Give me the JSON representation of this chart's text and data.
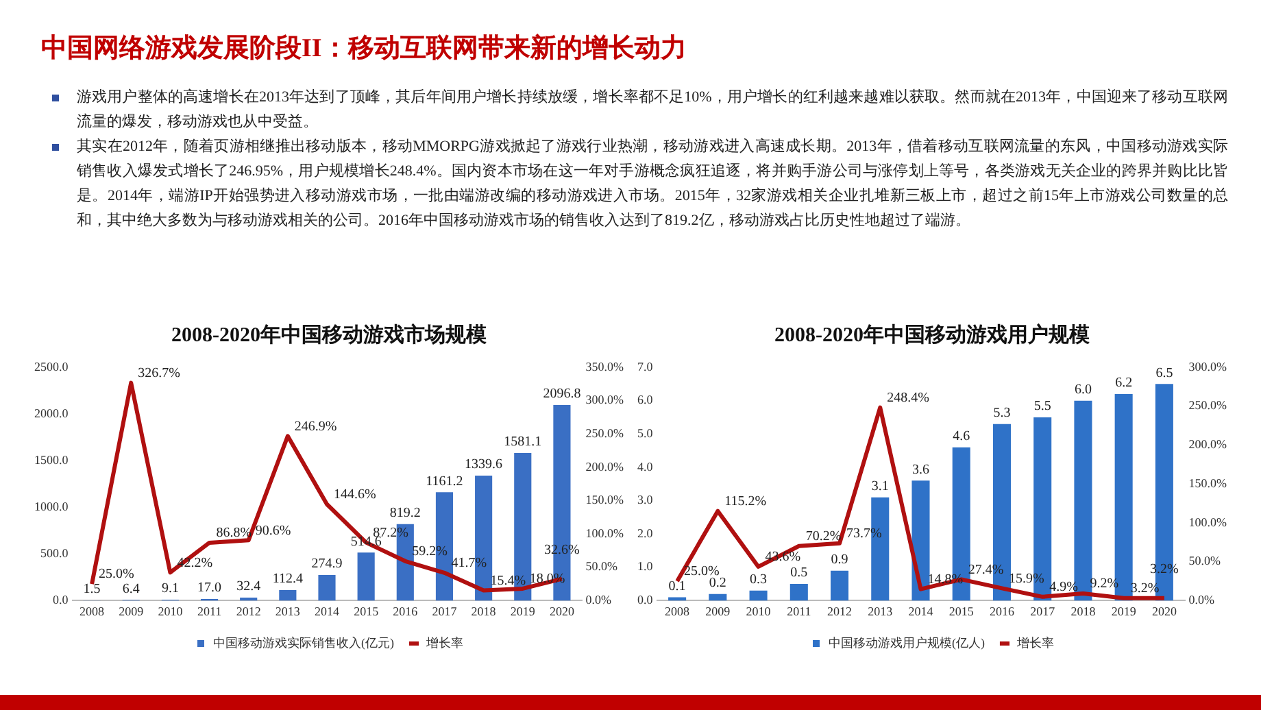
{
  "chart_data": [
    {
      "type": "other",
      "title": "中国网络游戏发展阶段II：移动互联网带来新的增长动力",
      "annotations": [
        "游戏用户整体的高速增长在2013年达到了顶峰，其后年间用户增长持续放缓，增长率都不足10%，用户增长的红利越来越难以获取。然而就在2013年，中国迎来了移动互联网流量的爆发，移动游戏也从中受益。",
        "其实在2012年，随着页游相继推出移动版本，移动MMORPG游戏掀起了游戏行业热潮，移动游戏进入高速成长期。2013年，借着移动互联网流量的东风，中国移动游戏实际销售收入爆发式增长了246.95%，用户规模增长248.4%。国内资本市场在这一年对手游概念疯狂追逐，将并购手游公司与涨停划上等号，各类游戏无关企业的跨界并购比比皆是。2014年，端游IP开始强势进入移动游戏市场，一批由端游改编的移动游戏进入市场。2015年，32家游戏相关企业扎堆新三板上市，超过之前15年上市游戏公司数量的总和，其中绝大多数为与移动游戏相关的公司。2016年中国移动游戏市场的销售收入达到了819.2亿，移动游戏占比历史性地超过了端游。"
      ]
    },
    {
      "type": "bar",
      "title": "2008-2020年中国移动游戏市场规模",
      "categories": [
        "2008",
        "2009",
        "2010",
        "2011",
        "2012",
        "2013",
        "2014",
        "2015",
        "2016",
        "2017",
        "2018",
        "2019",
        "2020"
      ],
      "series": [
        {
          "name": "中国移动游戏实际销售收入(亿元)",
          "color": "#3a6fc4",
          "values": [
            1.5,
            6.4,
            9.1,
            17.0,
            32.4,
            112.4,
            274.9,
            514.6,
            819.2,
            1161.2,
            1339.6,
            1581.1,
            2096.8
          ],
          "value_labels": [
            "1.5",
            "6.4",
            "9.1",
            "17.0",
            "32.4",
            "112.4",
            "274.9",
            "514.6",
            "819.2",
            "1161.2",
            "1339.6",
            "1581.1",
            "2096.8"
          ]
        },
        {
          "name": "增长率",
          "type": "line",
          "axis": "y2",
          "color": "#b01010",
          "values": [
            25.0,
            326.7,
            42.2,
            86.8,
            90.6,
            246.9,
            144.6,
            87.2,
            59.2,
            41.7,
            15.4,
            18.0,
            32.6
          ],
          "value_labels": [
            "25.0%",
            "326.7%",
            "42.2%",
            "86.8%",
            "90.6%",
            "246.9%",
            "144.6%",
            "87.2%",
            "59.2%",
            "41.7%",
            "15.4%",
            "18.0%",
            "32.6%"
          ]
        }
      ],
      "ylim": [
        0,
        2500
      ],
      "yticks": [
        {
          "value": 0,
          "label": "0.0"
        },
        {
          "value": 500,
          "label": "500.0"
        },
        {
          "value": 1000,
          "label": "1000.0"
        },
        {
          "value": 1500,
          "label": "1500.0"
        },
        {
          "value": 2000,
          "label": "2000.0"
        },
        {
          "value": 2500,
          "label": "2500.0"
        }
      ],
      "y2lim": [
        0,
        350
      ],
      "y2ticks": [
        {
          "value": 0,
          "label": "0.0%"
        },
        {
          "value": 50,
          "label": "50.0%"
        },
        {
          "value": 100,
          "label": "100.0%"
        },
        {
          "value": 150,
          "label": "150.0%"
        },
        {
          "value": 200,
          "label": "200.0%"
        },
        {
          "value": 250,
          "label": "250.0%"
        },
        {
          "value": 300,
          "label": "300.0%"
        },
        {
          "value": 350,
          "label": "350.0%"
        }
      ],
      "legend": "bottom",
      "grid": false
    },
    {
      "type": "bar",
      "title": "2008-2020年中国移动游戏用户规模",
      "categories": [
        "2008",
        "2009",
        "2010",
        "2011",
        "2012",
        "2013",
        "2014",
        "2015",
        "2016",
        "2017",
        "2018",
        "2019",
        "2020"
      ],
      "series": [
        {
          "name": "中国移动游戏用户规模(亿人)",
          "color": "#2f72c8",
          "values": [
            0.1,
            0.2,
            0.3,
            0.5,
            0.9,
            3.1,
            3.6,
            4.6,
            5.3,
            5.5,
            6.0,
            6.2,
            6.5
          ],
          "value_labels": [
            "0.1",
            "0.2",
            "0.3",
            "0.5",
            "0.9",
            "3.1",
            "3.6",
            "4.6",
            "5.3",
            "5.5",
            "6.0",
            "6.2",
            "6.5"
          ]
        },
        {
          "name": "增长率",
          "type": "line",
          "axis": "y2",
          "color": "#b01010",
          "values": [
            25.0,
            115.2,
            43.6,
            70.2,
            73.7,
            248.4,
            14.8,
            27.4,
            15.9,
            4.9,
            9.2,
            3.2,
            3.2
          ],
          "value_labels": [
            "25.0%",
            "115.2%",
            "43.6%",
            "70.2%",
            "73.7%",
            "248.4%",
            "14.8%",
            "27.4%",
            "15.9%",
            "4.9%",
            "9.2%",
            "3.2%",
            "3.2%"
          ]
        }
      ],
      "ylim": [
        0,
        7
      ],
      "yticks": [
        {
          "value": 0,
          "label": "0.0"
        },
        {
          "value": 1,
          "label": "1.0"
        },
        {
          "value": 2,
          "label": "2.0"
        },
        {
          "value": 3,
          "label": "3.0"
        },
        {
          "value": 4,
          "label": "4.0"
        },
        {
          "value": 5,
          "label": "5.0"
        },
        {
          "value": 6,
          "label": "6.0"
        },
        {
          "value": 7,
          "label": "7.0"
        }
      ],
      "y2lim": [
        0,
        300
      ],
      "y2ticks": [
        {
          "value": 0,
          "label": "0.0%"
        },
        {
          "value": 50,
          "label": "50.0%"
        },
        {
          "value": 100,
          "label": "100.0%"
        },
        {
          "value": 150,
          "label": "150.0%"
        },
        {
          "value": 200,
          "label": "200.0%"
        },
        {
          "value": 250,
          "label": "250.0%"
        },
        {
          "value": 300,
          "label": "300.0%"
        }
      ],
      "legend": "bottom",
      "grid": false
    }
  ]
}
